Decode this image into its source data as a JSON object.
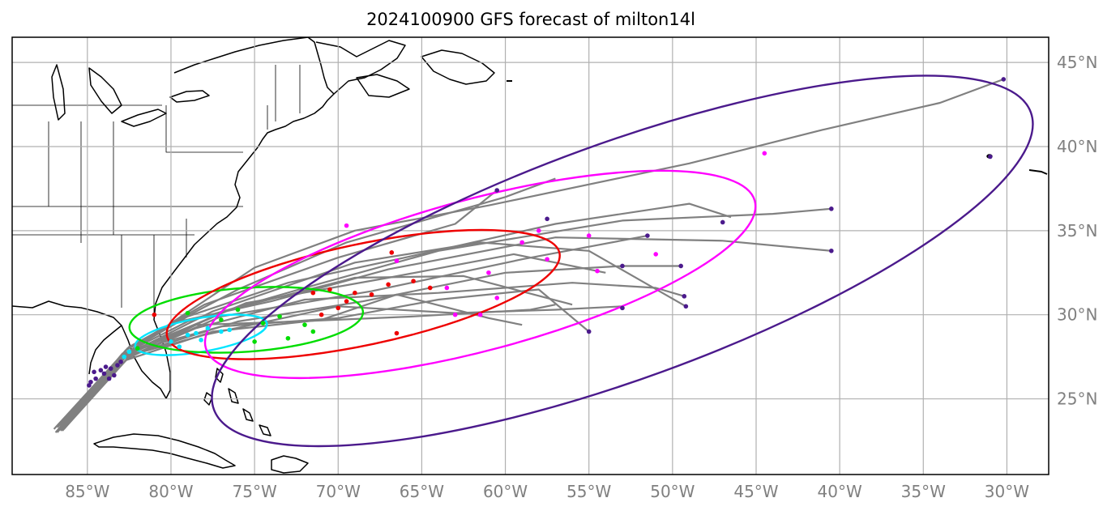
{
  "title": "2024100900 GFS forecast of milton14l",
  "map_data": {
    "type": "storm-track-map",
    "lon_range": [
      -89.5,
      -27.5
    ],
    "lat_range": [
      20.5,
      46.5
    ],
    "lon_ticks": [
      -85,
      -80,
      -75,
      -70,
      -65,
      -60,
      -55,
      -50,
      -45,
      -40,
      -35,
      -30
    ],
    "lon_tick_labels": [
      "85°W",
      "80°W",
      "75°W",
      "70°W",
      "65°W",
      "60°W",
      "55°W",
      "50°W",
      "45°W",
      "40°W",
      "35°W",
      "30°W"
    ],
    "lat_ticks": [
      25,
      30,
      35,
      40,
      45
    ],
    "lat_tick_labels": [
      "25°N",
      "30°N",
      "35°N",
      "40°N",
      "45°N"
    ],
    "grid": true,
    "colors": {
      "track": "#808080",
      "initial": "#4b1a8c",
      "f1": "#00e5ff",
      "f2": "#00dd00",
      "f3": "#ee0000",
      "f4": "#ff00ff",
      "f5": "#4b1a8c",
      "grid": "#b0b0b0",
      "coast": "#000000"
    },
    "ellipses": [
      {
        "color_key": "f1",
        "center": [
          -78.2,
          28.8
        ],
        "rx_deg": 4.0,
        "ry_deg": 1.0,
        "tilt_deg": 10
      },
      {
        "color_key": "f2",
        "center": [
          -75.5,
          29.7
        ],
        "rx_deg": 7.0,
        "ry_deg": 1.9,
        "tilt_deg": 4
      },
      {
        "color_key": "f3",
        "center": [
          -68.5,
          31.2
        ],
        "rx_deg": 12.0,
        "ry_deg": 3.0,
        "tilt_deg": 12
      },
      {
        "color_key": "f4",
        "center": [
          -61.5,
          32.4
        ],
        "rx_deg": 17.0,
        "ry_deg": 4.5,
        "tilt_deg": 15
      },
      {
        "color_key": "f5",
        "center": [
          -53.0,
          33.2
        ],
        "rx_deg": 26.0,
        "ry_deg": 7.0,
        "tilt_deg": 20
      }
    ],
    "tracks": [
      [
        [
          -87.0,
          23.2
        ],
        [
          -82.8,
          27.6
        ],
        [
          -80.0,
          29.5
        ],
        [
          -75.0,
          32.8
        ],
        [
          -69.0,
          35.0
        ],
        [
          -61.0,
          36.5
        ],
        [
          -49.0,
          39.0
        ],
        [
          -41.0,
          41.0
        ],
        [
          -34.0,
          42.6
        ],
        [
          -30.2,
          44.0
        ]
      ],
      [
        [
          -86.8,
          23.4
        ],
        [
          -82.8,
          27.7
        ],
        [
          -79.0,
          29.6
        ],
        [
          -72.0,
          31.6
        ],
        [
          -64.0,
          33.8
        ],
        [
          -53.0,
          35.6
        ],
        [
          -44.0,
          36.0
        ],
        [
          -40.5,
          36.3
        ]
      ],
      [
        [
          -86.6,
          23.3
        ],
        [
          -82.6,
          27.8
        ],
        [
          -79.0,
          29.9
        ],
        [
          -73.0,
          31.9
        ],
        [
          -66.0,
          33.4
        ],
        [
          -57.0,
          35.4
        ],
        [
          -49.0,
          36.6
        ],
        [
          -46.5,
          35.8
        ]
      ],
      [
        [
          -86.9,
          23.0
        ],
        [
          -82.7,
          27.9
        ],
        [
          -79.5,
          29.6
        ],
        [
          -74.0,
          30.8
        ],
        [
          -67.0,
          32.7
        ],
        [
          -57.0,
          34.6
        ],
        [
          -47.0,
          34.4
        ],
        [
          -40.5,
          33.8
        ]
      ],
      [
        [
          -86.5,
          23.1
        ],
        [
          -82.5,
          27.5
        ],
        [
          -78.5,
          29.2
        ],
        [
          -72.0,
          30.9
        ],
        [
          -64.0,
          31.3
        ],
        [
          -56.0,
          31.9
        ],
        [
          -51.0,
          31.6
        ],
        [
          -49.3,
          31.1
        ]
      ],
      [
        [
          -86.7,
          23.2
        ],
        [
          -82.4,
          27.6
        ],
        [
          -78.0,
          28.8
        ],
        [
          -70.0,
          30.5
        ],
        [
          -63.0,
          30.1
        ],
        [
          -57.0,
          30.3
        ],
        [
          -53.0,
          30.5
        ]
      ],
      [
        [
          -86.8,
          23.0
        ],
        [
          -82.9,
          27.7
        ],
        [
          -77.0,
          29.3
        ],
        [
          -70.0,
          29.8
        ],
        [
          -64.0,
          30.9
        ],
        [
          -58.0,
          31.5
        ],
        [
          -55.0,
          29.0
        ]
      ],
      [
        [
          -86.6,
          23.4
        ],
        [
          -82.6,
          28.0
        ],
        [
          -78.0,
          30.6
        ],
        [
          -70.0,
          33.4
        ],
        [
          -63.0,
          35.4
        ],
        [
          -60.5,
          37.4
        ]
      ],
      [
        [
          -86.9,
          23.3
        ],
        [
          -82.5,
          28.1
        ],
        [
          -76.0,
          31.5
        ],
        [
          -69.5,
          34.3
        ],
        [
          -60.0,
          37.0
        ],
        [
          -57.0,
          38.1
        ]
      ],
      [
        [
          -86.4,
          23.2
        ],
        [
          -82.8,
          27.4
        ],
        [
          -77.0,
          29.9
        ],
        [
          -68.0,
          31.4
        ],
        [
          -59.0,
          33.3
        ],
        [
          -51.5,
          34.7
        ]
      ],
      [
        [
          -86.6,
          23.2
        ],
        [
          -82.6,
          27.6
        ],
        [
          -76.5,
          30.3
        ],
        [
          -69.0,
          32.2
        ],
        [
          -62.5,
          32.3
        ],
        [
          -56.0,
          30.6
        ]
      ],
      [
        [
          -86.8,
          23.1
        ],
        [
          -82.7,
          27.3
        ],
        [
          -77.5,
          29.0
        ],
        [
          -71.0,
          29.7
        ],
        [
          -66.5,
          31.2
        ],
        [
          -61.0,
          29.8
        ],
        [
          -59.0,
          29.4
        ]
      ],
      [
        [
          -86.5,
          23.3
        ],
        [
          -82.8,
          27.5
        ],
        [
          -76.0,
          29.6
        ],
        [
          -68.5,
          30.8
        ],
        [
          -60.0,
          32.5
        ],
        [
          -53.0,
          32.9
        ],
        [
          -49.5,
          32.9
        ]
      ],
      [
        [
          -86.7,
          23.4
        ],
        [
          -82.7,
          27.6
        ],
        [
          -77.5,
          30.2
        ],
        [
          -69.0,
          33.1
        ],
        [
          -61.5,
          34.3
        ],
        [
          -55.0,
          33.8
        ],
        [
          -49.2,
          30.5
        ]
      ],
      [
        [
          -86.8,
          23.3
        ],
        [
          -82.5,
          27.8
        ],
        [
          -75.5,
          30.7
        ],
        [
          -67.0,
          32.2
        ],
        [
          -59.5,
          33.6
        ],
        [
          -54.0,
          32.5
        ]
      ],
      [
        [
          -86.6,
          23.1
        ],
        [
          -82.6,
          27.4
        ],
        [
          -78.5,
          29.4
        ],
        [
          -72.5,
          29.6
        ],
        [
          -65.5,
          29.9
        ],
        [
          -58.5,
          30.3
        ],
        [
          -57.0,
          30.6
        ]
      ]
    ],
    "points": {
      "initial": [
        [
          -84.5,
          26.2
        ],
        [
          -84.0,
          26.5
        ],
        [
          -83.6,
          26.8
        ],
        [
          -83.2,
          27.0
        ],
        [
          -84.8,
          26.0
        ],
        [
          -83.9,
          26.9
        ],
        [
          -83.4,
          26.4
        ],
        [
          -84.2,
          26.7
        ],
        [
          -83.0,
          27.2
        ],
        [
          -84.6,
          26.6
        ],
        [
          -83.7,
          26.2
        ],
        [
          -84.9,
          25.8
        ]
      ],
      "f1": [
        [
          -82.8,
          27.5
        ],
        [
          -80.0,
          28.4
        ],
        [
          -79.0,
          28.8
        ],
        [
          -78.5,
          28.9
        ],
        [
          -77.8,
          29.2
        ],
        [
          -77.0,
          29.0
        ],
        [
          -78.2,
          28.5
        ],
        [
          -76.5,
          29.1
        ],
        [
          -79.5,
          28.1
        ],
        [
          -82.5,
          27.8
        ]
      ],
      "f2": [
        [
          -82.0,
          28.0
        ],
        [
          -79.0,
          30.1
        ],
        [
          -75.0,
          28.4
        ],
        [
          -73.0,
          28.6
        ],
        [
          -77.0,
          29.7
        ],
        [
          -74.5,
          29.5
        ],
        [
          -72.0,
          29.4
        ],
        [
          -71.5,
          29.0
        ],
        [
          -76.0,
          30.3
        ],
        [
          -73.5,
          29.9
        ]
      ],
      "f3": [
        [
          -81.0,
          30.0
        ],
        [
          -71.5,
          31.3
        ],
        [
          -70.5,
          31.5
        ],
        [
          -69.0,
          31.3
        ],
        [
          -67.0,
          31.8
        ],
        [
          -65.5,
          32.0
        ],
        [
          -70.0,
          30.4
        ],
        [
          -66.5,
          28.9
        ],
        [
          -68.0,
          31.2
        ],
        [
          -69.5,
          30.8
        ],
        [
          -64.5,
          31.6
        ],
        [
          -71.0,
          30.0
        ],
        [
          -66.8,
          33.7
        ]
      ],
      "f4": [
        [
          -69.5,
          35.3
        ],
        [
          -66.5,
          33.2
        ],
        [
          -63.5,
          31.6
        ],
        [
          -61.5,
          30.0
        ],
        [
          -57.5,
          33.3
        ],
        [
          -55.0,
          34.7
        ],
        [
          -59.0,
          34.3
        ],
        [
          -63.0,
          30.0
        ],
        [
          -51.0,
          33.6
        ],
        [
          -54.5,
          32.6
        ],
        [
          -61.0,
          32.5
        ],
        [
          -58.0,
          35.0
        ],
        [
          -44.5,
          39.6
        ],
        [
          -60.5,
          31.0
        ]
      ],
      "f5": [
        [
          -60.5,
          37.4
        ],
        [
          -57.5,
          35.7
        ],
        [
          -51.5,
          34.7
        ],
        [
          -49.3,
          31.1
        ],
        [
          -49.2,
          30.5
        ],
        [
          -53.0,
          30.4
        ],
        [
          -55.0,
          29.0
        ],
        [
          -47.0,
          35.5
        ],
        [
          -40.5,
          36.3
        ],
        [
          -40.5,
          33.8
        ],
        [
          -30.2,
          44.0
        ],
        [
          -31.0,
          39.4
        ],
        [
          -49.5,
          32.9
        ],
        [
          -53.0,
          32.9
        ]
      ]
    }
  }
}
